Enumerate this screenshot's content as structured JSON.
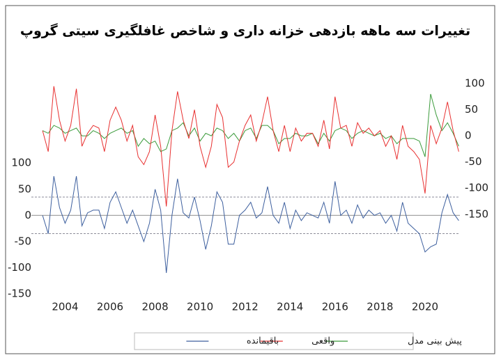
{
  "chart_data": {
    "type": "line",
    "title": "تغییرات سه ماهه بازدهی خزانه داری و شاخص غافلگیری سیتی گروپ",
    "x": [
      2003,
      2003.25,
      2003.5,
      2003.75,
      2004,
      2004.25,
      2004.5,
      2004.75,
      2005,
      2005.25,
      2005.5,
      2005.75,
      2006,
      2006.25,
      2006.5,
      2006.75,
      2007,
      2007.25,
      2007.5,
      2007.75,
      2008,
      2008.25,
      2008.5,
      2008.75,
      2009,
      2009.25,
      2009.5,
      2009.75,
      2010,
      2010.25,
      2010.5,
      2010.75,
      2011,
      2011.25,
      2011.5,
      2011.75,
      2012,
      2012.25,
      2012.5,
      2012.75,
      2013,
      2013.25,
      2013.5,
      2013.75,
      2014,
      2014.25,
      2014.5,
      2014.75,
      2015,
      2015.25,
      2015.5,
      2015.75,
      2016,
      2016.25,
      2016.5,
      2016.75,
      2017,
      2017.25,
      2017.5,
      2017.75,
      2018,
      2018.25,
      2018.5,
      2018.75,
      2019,
      2019.25,
      2019.5,
      2019.75,
      2020,
      2020.25,
      2020.5,
      2020.75,
      2021,
      2021.25,
      2021.5
    ],
    "xlim": [
      2002.5,
      2021.55
    ],
    "xticks": [
      2004,
      2006,
      2008,
      2010,
      2012,
      2014,
      2016,
      2018,
      2020
    ],
    "ylim": [
      -150,
      252
    ],
    "yticks": [
      -150,
      -100,
      -50,
      0,
      50,
      100
    ],
    "y2lim": [
      -302,
      100
    ],
    "y2ticks": [
      -150,
      -100,
      -50,
      0,
      50,
      100
    ],
    "reference_lines": [
      35,
      -35
    ],
    "series": [
      {
        "name": "پیش بینی مدل",
        "color": "#3a9a3a",
        "axis": "y2",
        "values": [
          10,
          5,
          20,
          15,
          5,
          10,
          15,
          0,
          0,
          10,
          5,
          -5,
          5,
          10,
          15,
          5,
          10,
          -20,
          -5,
          -15,
          -10,
          -30,
          -25,
          10,
          15,
          25,
          0,
          15,
          -10,
          5,
          0,
          15,
          10,
          -5,
          5,
          -10,
          10,
          15,
          -5,
          20,
          20,
          10,
          -15,
          -5,
          -5,
          5,
          0,
          0,
          5,
          -15,
          5,
          -10,
          10,
          15,
          10,
          -5,
          5,
          10,
          5,
          0,
          5,
          -5,
          0,
          -15,
          -5,
          -5,
          -5,
          -10,
          -40,
          80,
          40,
          10,
          25,
          5,
          -20
        ]
      },
      {
        "name": "واقعی",
        "color": "#e83030",
        "axis": "y2",
        "values": [
          10,
          -30,
          95,
          30,
          -10,
          20,
          90,
          -20,
          5,
          20,
          15,
          -30,
          30,
          55,
          30,
          -10,
          20,
          -40,
          -55,
          -30,
          40,
          -20,
          -135,
          10,
          85,
          30,
          -5,
          50,
          -20,
          -60,
          -20,
          60,
          35,
          -60,
          -50,
          -10,
          20,
          40,
          -10,
          25,
          75,
          10,
          -30,
          20,
          -30,
          15,
          -10,
          5,
          5,
          -20,
          30,
          -25,
          75,
          15,
          20,
          -20,
          25,
          5,
          15,
          0,
          10,
          -20,
          0,
          -45,
          20,
          -20,
          -30,
          -45,
          -110,
          20,
          -15,
          15,
          65,
          10,
          -30
        ]
      },
      {
        "name": "باقیمانده",
        "color": "#3d5f9e",
        "values": [
          0,
          -35,
          75,
          15,
          -15,
          10,
          75,
          -20,
          5,
          10,
          10,
          -25,
          25,
          45,
          15,
          -15,
          10,
          -20,
          -50,
          -15,
          50,
          10,
          -110,
          0,
          70,
          5,
          -5,
          35,
          -10,
          -65,
          -20,
          45,
          25,
          -55,
          -55,
          0,
          10,
          25,
          -5,
          5,
          55,
          0,
          -15,
          25,
          -25,
          10,
          -10,
          5,
          0,
          -5,
          25,
          -15,
          65,
          0,
          10,
          -15,
          20,
          -5,
          10,
          0,
          5,
          -15,
          0,
          -30,
          25,
          -15,
          -25,
          -35,
          -70,
          -60,
          -55,
          5,
          40,
          5,
          -10
        ]
      }
    ]
  }
}
